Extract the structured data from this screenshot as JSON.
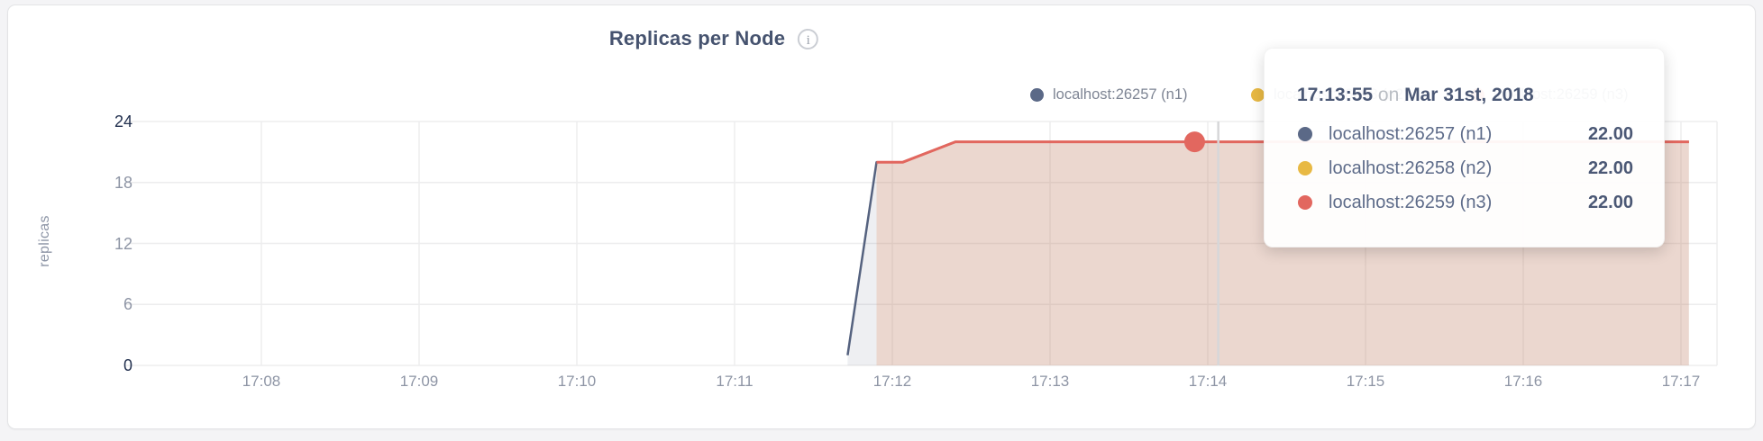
{
  "chart": {
    "info_icon": "i"
  },
  "chart_data": {
    "type": "area",
    "title": "Replicas per Node",
    "xlabel": "",
    "ylabel": "replicas",
    "ylim": [
      0,
      24
    ],
    "y_ticks": [
      0,
      6,
      12,
      18,
      24
    ],
    "x_ticks": [
      "17:08",
      "17:09",
      "17:10",
      "17:11",
      "17:12",
      "17:13",
      "17:14",
      "17:15",
      "17:16",
      "17:17"
    ],
    "grid": true,
    "legend_position": "top-right",
    "series": [
      {
        "name": "localhost:26257 (n1)",
        "color": "#55627f",
        "fill_opacity": 0.1,
        "line_width": 2.5,
        "points": [
          [
            "17:11:43",
            1
          ],
          [
            "17:11:54",
            20
          ],
          [
            "17:12:04",
            20
          ],
          [
            "17:12:24",
            22
          ],
          [
            "17:17:03",
            22
          ]
        ]
      },
      {
        "name": "localhost:26258 (n2)",
        "color": "#e8b944",
        "fill_opacity": 0.1,
        "line_width": 2.5,
        "points": [
          [
            "17:11:54",
            20
          ],
          [
            "17:12:04",
            20
          ],
          [
            "17:12:24",
            22
          ],
          [
            "17:17:03",
            22
          ]
        ]
      },
      {
        "name": "localhost:26259 (n3)",
        "color": "#e2675f",
        "fill_opacity": 0.13,
        "line_width": 3,
        "points": [
          [
            "17:11:54",
            20
          ],
          [
            "17:12:04",
            20
          ],
          [
            "17:12:24",
            22
          ],
          [
            "17:17:03",
            22
          ]
        ]
      }
    ]
  },
  "legend": {
    "items": [
      {
        "label": "localhost:26257 (n1)",
        "color": "#5b6987"
      },
      {
        "label": "localhost:26258 (n2)",
        "color": "#e8b944"
      },
      {
        "label": "localhost:26259 (n3)",
        "color": "#e2675f"
      }
    ]
  },
  "hover": {
    "dot_time": "17:13:55",
    "dot_value": 22,
    "dot_color": "#e2675f",
    "guideline_time": "17:14:04"
  },
  "tooltip": {
    "time": "17:13:55",
    "on": "on",
    "date": "Mar 31st, 2018",
    "rows": [
      {
        "name": "localhost:26257 (n1)",
        "value": "22.00",
        "color": "#5b6987"
      },
      {
        "name": "localhost:26258 (n2)",
        "value": "22.00",
        "color": "#e8b944"
      },
      {
        "name": "localhost:26259 (n3)",
        "value": "22.00",
        "color": "#e2675f"
      }
    ]
  }
}
